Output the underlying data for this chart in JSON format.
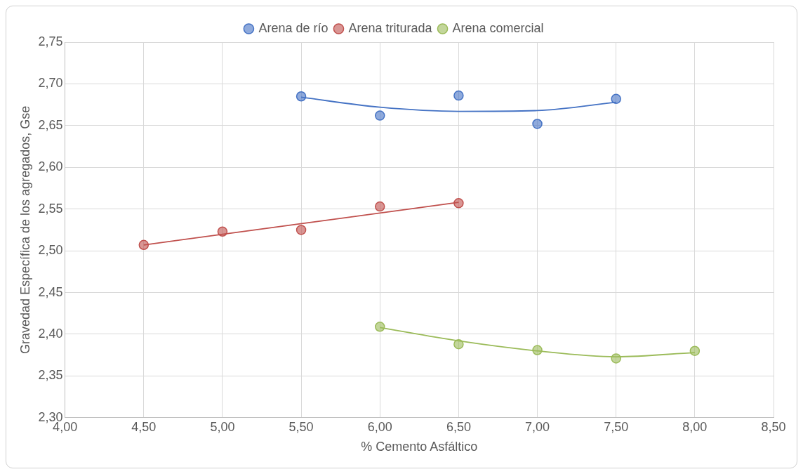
{
  "chart_data": {
    "type": "scatter",
    "xlabel": "% Cemento Asfáltico",
    "ylabel": "Gravedad Específica de los agregados, Gse",
    "xlim": [
      4,
      8.5
    ],
    "xticks": [
      {
        "value": 4,
        "label": "4,00"
      },
      {
        "value": 4.5,
        "label": "4,50"
      },
      {
        "value": 5,
        "label": "5,00"
      },
      {
        "value": 5.5,
        "label": "5,50"
      },
      {
        "value": 6,
        "label": "6,00"
      },
      {
        "value": 6.5,
        "label": "6,50"
      },
      {
        "value": 7,
        "label": "7,00"
      },
      {
        "value": 7.5,
        "label": "7,50"
      },
      {
        "value": 8,
        "label": "8,00"
      },
      {
        "value": 8.5,
        "label": "8,50"
      }
    ],
    "ylim": [
      2.3,
      2.75
    ],
    "yticks": [
      {
        "value": 2.3,
        "label": "2,30"
      },
      {
        "value": 2.35,
        "label": "2,35"
      },
      {
        "value": 2.4,
        "label": "2,40"
      },
      {
        "value": 2.45,
        "label": "2,45"
      },
      {
        "value": 2.5,
        "label": "2,50"
      },
      {
        "value": 2.55,
        "label": "2,55"
      },
      {
        "value": 2.6,
        "label": "2,60"
      },
      {
        "value": 2.65,
        "label": "2,65"
      },
      {
        "value": 2.7,
        "label": "2,70"
      },
      {
        "value": 2.75,
        "label": "2,75"
      }
    ],
    "grid": true,
    "legend": "top",
    "marker": "circle",
    "series": [
      {
        "name": "Arena de río",
        "color": "#4472c4",
        "x": [
          5.5,
          6,
          6.5,
          7,
          7.5
        ],
        "values": [
          2.685,
          2.662,
          2.686,
          2.652,
          2.682
        ]
      },
      {
        "name": "Arena triturada",
        "color": "#c0504d",
        "x": [
          4.5,
          5,
          5.5,
          6,
          6.5
        ],
        "values": [
          2.507,
          2.523,
          2.525,
          2.553,
          2.557
        ]
      },
      {
        "name": "Arena comercial",
        "color": "#9bbb59",
        "x": [
          6,
          6.5,
          7,
          7.5,
          8
        ],
        "values": [
          2.409,
          2.388,
          2.381,
          2.371,
          2.38
        ]
      },
      {
        "type": "line",
        "color": "#4472c4",
        "marker": "none",
        "x": [
          5.5,
          6,
          6.5,
          7,
          7.5
        ],
        "values": [
          2.684,
          2.672,
          2.667,
          2.668,
          2.678
        ]
      },
      {
        "type": "line",
        "color": "#c0504d",
        "marker": "none",
        "x": [
          4.5,
          6.5
        ],
        "values": [
          2.507,
          2.558
        ]
      },
      {
        "type": "line",
        "color": "#9bbb59",
        "marker": "none",
        "x": [
          6,
          6.5,
          7,
          7.5,
          8
        ],
        "values": [
          2.408,
          2.392,
          2.38,
          2.373,
          2.378
        ]
      }
    ]
  }
}
